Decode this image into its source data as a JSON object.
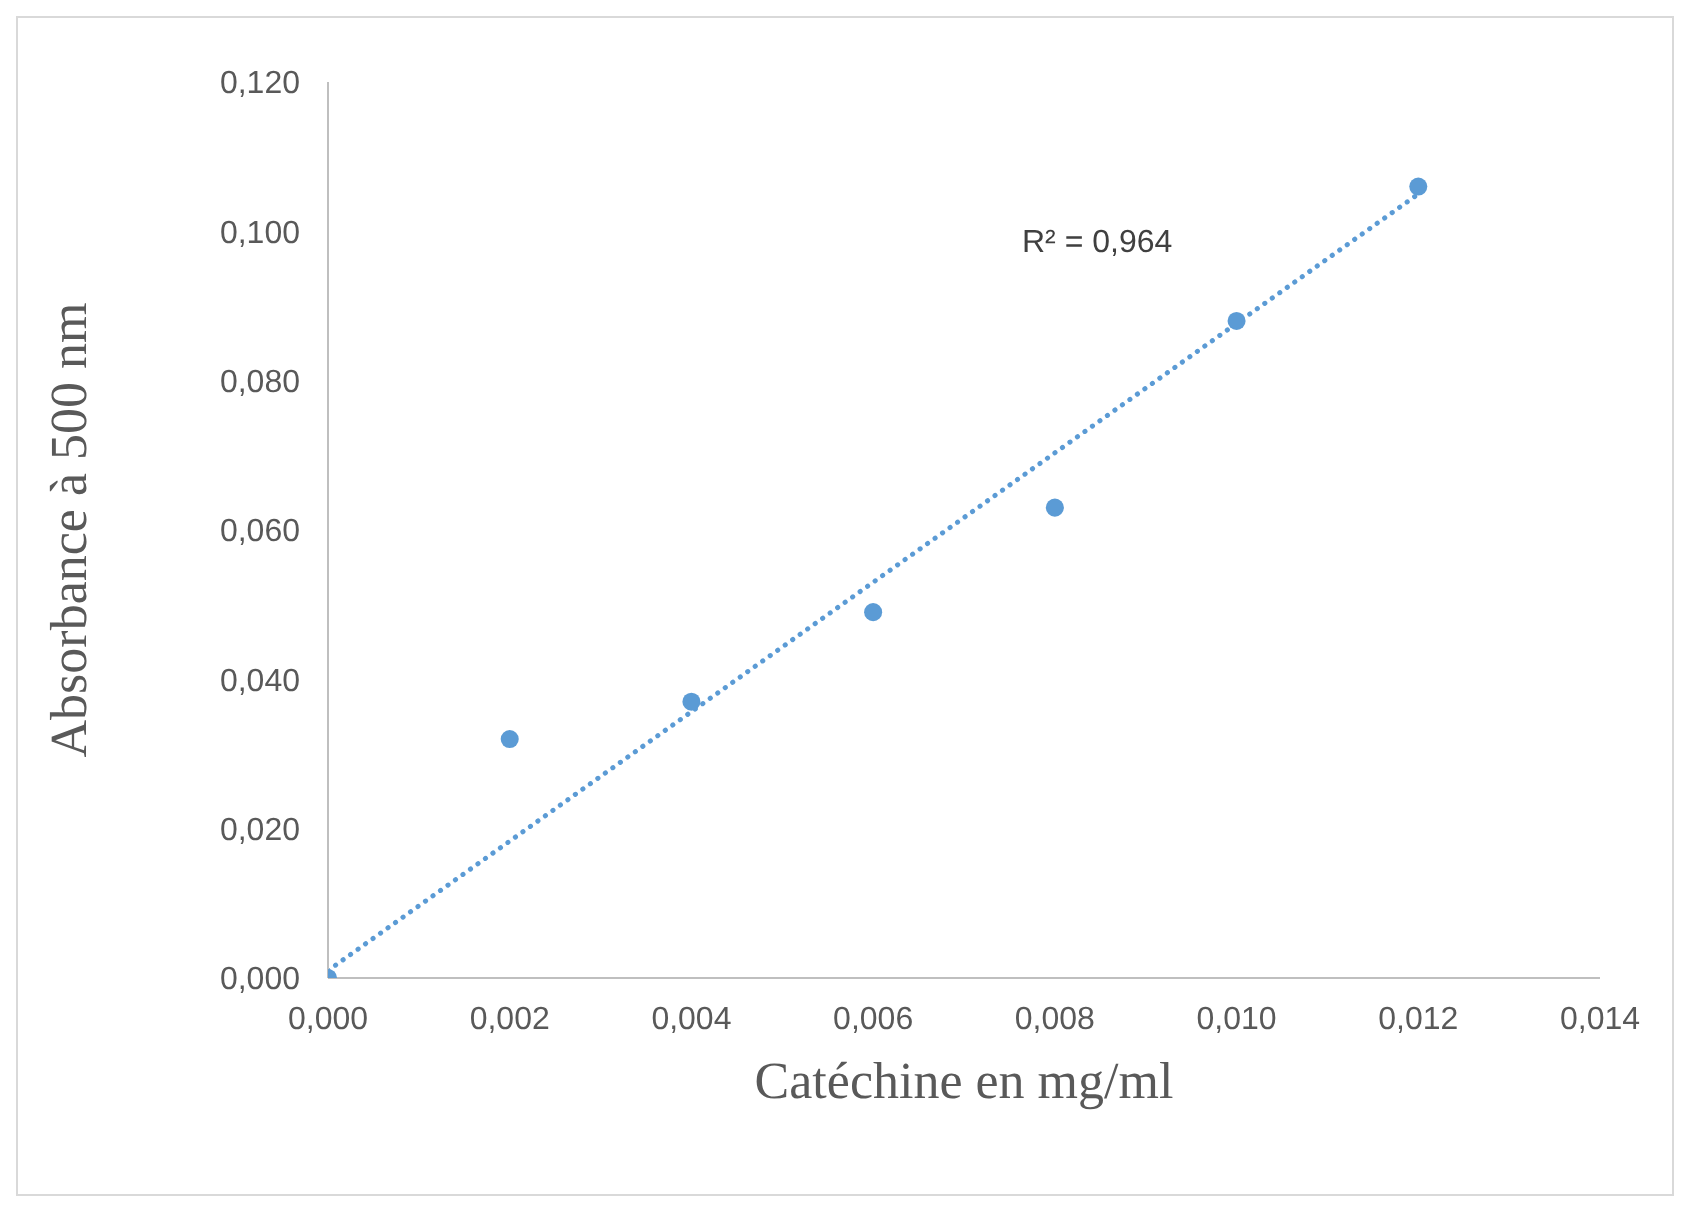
{
  "chart_data": {
    "type": "scatter",
    "xlabel": "Catéchine en mg/ml",
    "ylabel": "Absorbance à 500 nm",
    "x": [
      0,
      0.002,
      0.004,
      0.006,
      0.008,
      0.01,
      0.012
    ],
    "series": [
      {
        "color": "#5b9bd5",
        "marker": "circle",
        "values": [
          0,
          0.032,
          0.037,
          0.049,
          0.063,
          0.088,
          0.106
        ]
      },
      {
        "type": "line",
        "color": "#5b9bd5",
        "line_style": "dotted",
        "marker": "none",
        "x": [
          0,
          0.012
        ],
        "values": [
          0.001,
          0.105
        ]
      }
    ],
    "xlim": [
      0,
      0.014
    ],
    "xticks": [
      {
        "value": 0,
        "label": "0,000"
      },
      {
        "value": 0.002,
        "label": "0,002"
      },
      {
        "value": 0.004,
        "label": "0,004"
      },
      {
        "value": 0.006,
        "label": "0,006"
      },
      {
        "value": 0.008,
        "label": "0,008"
      },
      {
        "value": 0.01,
        "label": "0,010"
      },
      {
        "value": 0.012,
        "label": "0,012"
      },
      {
        "value": 0.014,
        "label": "0,014"
      }
    ],
    "ylim": [
      0,
      0.12
    ],
    "yticks": [
      {
        "value": 0,
        "label": "0,000"
      },
      {
        "value": 0.02,
        "label": "0,020"
      },
      {
        "value": 0.04,
        "label": "0,040"
      },
      {
        "value": 0.06,
        "label": "0,060"
      },
      {
        "value": 0.08,
        "label": "0,080"
      },
      {
        "value": 0.1,
        "label": "0,100"
      },
      {
        "value": 0.12,
        "label": "0,120"
      }
    ],
    "annotations": [
      "R² = 0,964"
    ],
    "grid": false
  }
}
